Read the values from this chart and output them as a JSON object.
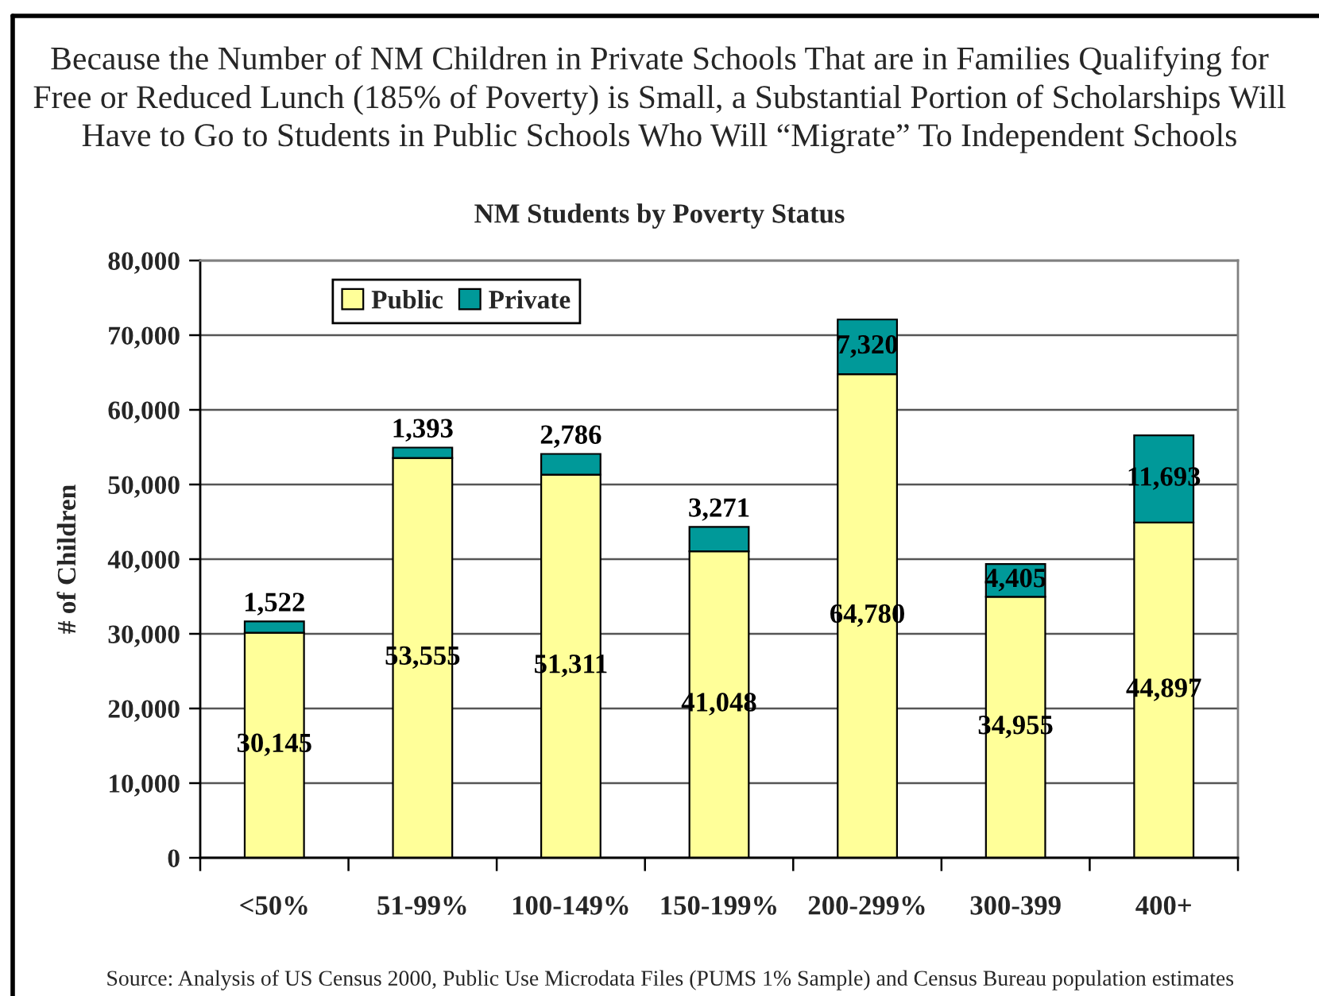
{
  "chart_data": {
    "type": "bar",
    "title": "Because the Number of NM Children in Private Schools That are in Families Qualifying for\nFree or Reduced Lunch (185% of Poverty) is Small, a Substantial Portion of Scholarships Will\nHave to Go to Students in Public Schools Who Will “Migrate” To Independent Schools",
    "subtitle": "NM Students by Poverty Status",
    "ylabel": "# of Children",
    "categories": [
      "<50%",
      "51-99%",
      "100-149%",
      "150-199%",
      "200-299%",
      "300-399",
      "400+"
    ],
    "series": [
      {
        "name": "Public",
        "color": "#ffff99",
        "values": [
          30145,
          53555,
          51311,
          41048,
          64780,
          34955,
          44897
        ],
        "value_labels": [
          "30,145",
          "53,555",
          "51,311",
          "41,048",
          "64,780",
          "34,955",
          "44,897"
        ]
      },
      {
        "name": "Private",
        "color": "#009999",
        "values": [
          1522,
          1393,
          2786,
          3271,
          7320,
          4405,
          11693
        ],
        "value_labels": [
          "1,522",
          "1,393",
          "2,786",
          "3,271",
          "7,320",
          "4,405",
          "11,693"
        ]
      }
    ],
    "stacked": true,
    "ylim": [
      0,
      80000
    ],
    "yticks": [
      0,
      {
        "value": 10000,
        "label": "10,000"
      },
      {
        "value": 20000,
        "label": "20,000"
      },
      {
        "value": 30000,
        "label": "30,000"
      },
      {
        "value": 40000,
        "label": "40,000"
      },
      {
        "value": 50000,
        "label": "50,000"
      },
      {
        "value": 60000,
        "label": "60,000"
      },
      {
        "value": 70000,
        "label": "70,000"
      },
      {
        "value": 80000,
        "label": "80,000"
      }
    ],
    "grid": "y",
    "legend": "top left",
    "annotations": [
      "Source: Analysis of US Census 2000, Public Use Microdata Files (PUMS 1% Sample) and Census Bureau population estimates"
    ]
  }
}
